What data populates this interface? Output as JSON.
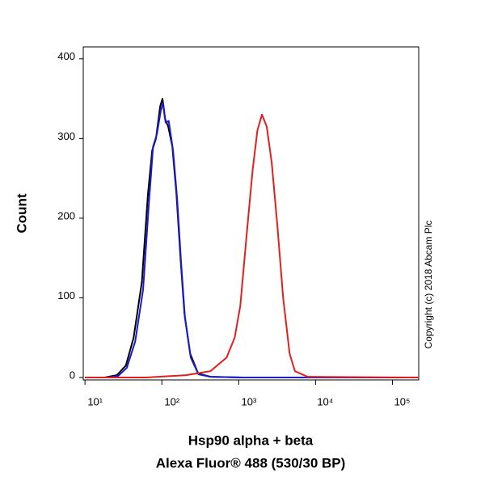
{
  "chart_data": {
    "type": "line",
    "y_label": "Count",
    "x_label": [
      "Hsp90 alpha + beta",
      "Alexa Fluor® 488 (530/30 BP)"
    ],
    "annotation": "Copyright (c) 2018 Abcam Plc",
    "x_scale": "log",
    "xlim": [
      9.5,
      220000
    ],
    "ylim": [
      -3,
      415
    ],
    "xticks": [
      {
        "value": 10,
        "label": "10¹"
      },
      {
        "value": 100,
        "label": "10²"
      },
      {
        "value": 1000,
        "label": "10³"
      },
      {
        "value": 10000,
        "label": "10⁴"
      },
      {
        "value": 100000,
        "label": "10⁵"
      }
    ],
    "yticks": [
      0,
      100,
      200,
      300,
      400
    ],
    "series": [
      {
        "color": "#000000",
        "x": [
          10,
          18,
          26,
          34,
          43,
          55,
          66,
          75,
          84,
          95,
          102,
          110,
          121,
          137,
          155,
          175,
          197,
          234,
          297,
          429,
          1130,
          220000
        ],
        "values": [
          0,
          0,
          3,
          15,
          50,
          120,
          230,
          285,
          300,
          340,
          350,
          325,
          315,
          290,
          230,
          150,
          80,
          30,
          5,
          1,
          0,
          0
        ]
      },
      {
        "color": "#1a1acc",
        "x": [
          10,
          19,
          27,
          35,
          45,
          57,
          68,
          77,
          86,
          97,
          104,
          112,
          123,
          140,
          158,
          178,
          200,
          238,
          300,
          430,
          1130,
          220000
        ],
        "values": [
          0,
          0,
          2,
          12,
          45,
          110,
          220,
          290,
          305,
          335,
          345,
          320,
          322,
          285,
          225,
          145,
          75,
          25,
          4,
          1,
          0,
          0
        ]
      },
      {
        "color": "#e02020",
        "x": [
          10,
          62,
          207,
          429,
          695,
          886,
          1050,
          1273,
          1519,
          1750,
          2009,
          2316,
          2690,
          3191,
          3792,
          4600,
          5400,
          7850,
          220000
        ],
        "values": [
          0,
          0,
          3,
          8,
          25,
          50,
          90,
          180,
          260,
          310,
          330,
          315,
          270,
          190,
          100,
          30,
          8,
          1,
          0
        ]
      }
    ]
  }
}
